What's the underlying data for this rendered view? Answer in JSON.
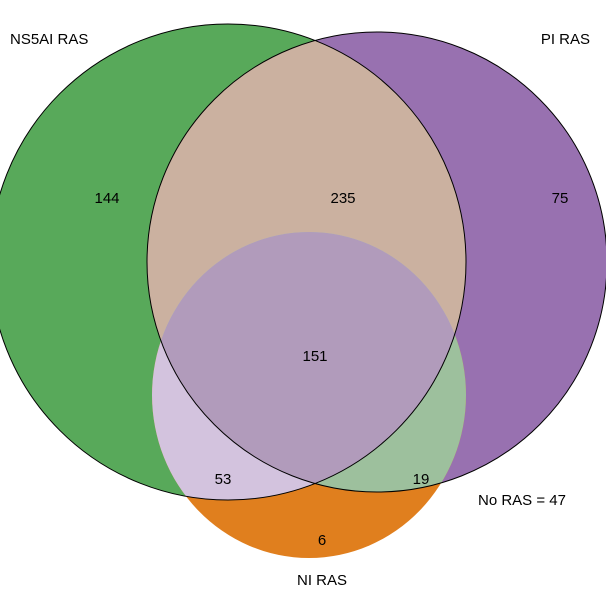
{
  "diagram": {
    "sets": [
      {
        "key": "ns5ai",
        "label": "NS5AI RAS",
        "color": "#58a95a"
      },
      {
        "key": "pi",
        "label": "PI RAS",
        "color": "#9871b0"
      },
      {
        "key": "ni",
        "label": "NI RAS",
        "color": "#e07f1e"
      }
    ],
    "regions": {
      "ns5ai_only": "144",
      "ns5ai_pi": "235",
      "pi_only": "75",
      "all_three": "151",
      "ns5ai_ni": "53",
      "pi_ni": "19",
      "ni_only": "6"
    },
    "outside_note": "No RAS = 47",
    "region_colors": {
      "ns5ai_pi": "#cbb1a0",
      "ns5ai_ni": "#d3c3de",
      "pi_ni": "#9dc09d",
      "all_three": "#b19bbb"
    }
  }
}
